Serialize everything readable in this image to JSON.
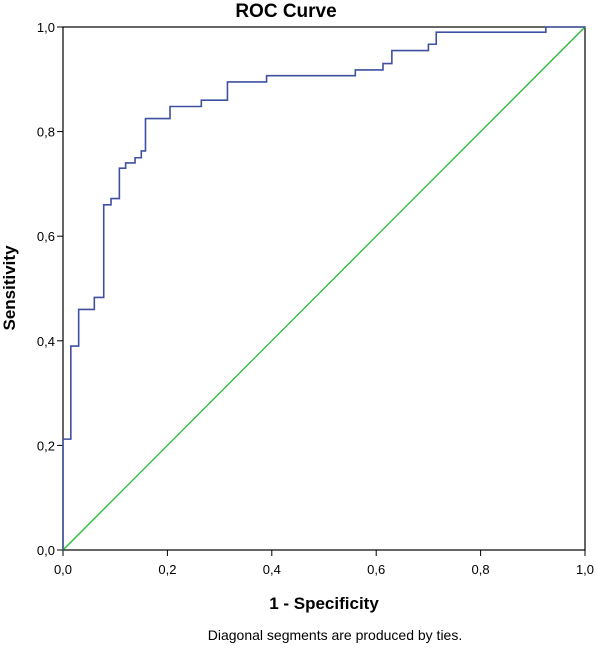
{
  "chart_data": {
    "type": "line",
    "title": "ROC Curve",
    "xlabel": "1 - Specificity",
    "ylabel": "Sensitivity",
    "footnote": "Diagonal segments are produced by ties.",
    "xlim": [
      0,
      1
    ],
    "ylim": [
      0,
      1
    ],
    "x_ticks": [
      "0,0",
      "0,2",
      "0,4",
      "0,6",
      "0,8",
      "1,0"
    ],
    "y_ticks": [
      "0,0",
      "0,2",
      "0,4",
      "0,6",
      "0,8",
      "1,0"
    ],
    "grid": false,
    "legend": "none",
    "series": [
      {
        "color": "#3f50a0",
        "x": [
          0.0,
          0.0,
          0.0,
          0.015,
          0.015,
          0.03,
          0.03,
          0.06,
          0.06,
          0.078,
          0.078,
          0.092,
          0.092,
          0.108,
          0.108,
          0.12,
          0.12,
          0.138,
          0.138,
          0.15,
          0.15,
          0.158,
          0.158,
          0.205,
          0.205,
          0.265,
          0.265,
          0.315,
          0.315,
          0.39,
          0.39,
          0.56,
          0.56,
          0.6,
          0.6,
          0.613,
          0.613,
          0.63,
          0.63,
          0.7,
          0.7,
          0.715,
          0.715,
          0.925,
          0.925,
          1.0
        ],
        "y": [
          0.0,
          0.212,
          0.212,
          0.212,
          0.39,
          0.39,
          0.46,
          0.46,
          0.483,
          0.483,
          0.66,
          0.66,
          0.672,
          0.672,
          0.73,
          0.73,
          0.74,
          0.74,
          0.75,
          0.75,
          0.763,
          0.763,
          0.825,
          0.825,
          0.848,
          0.848,
          0.86,
          0.86,
          0.895,
          0.895,
          0.907,
          0.907,
          0.918,
          0.918,
          0.918,
          0.918,
          0.93,
          0.93,
          0.955,
          0.955,
          0.967,
          0.967,
          0.99,
          0.99,
          1.0,
          1.0
        ]
      },
      {
        "color": "#22bb33",
        "x": [
          0,
          1
        ],
        "y": [
          0,
          1
        ]
      }
    ]
  }
}
